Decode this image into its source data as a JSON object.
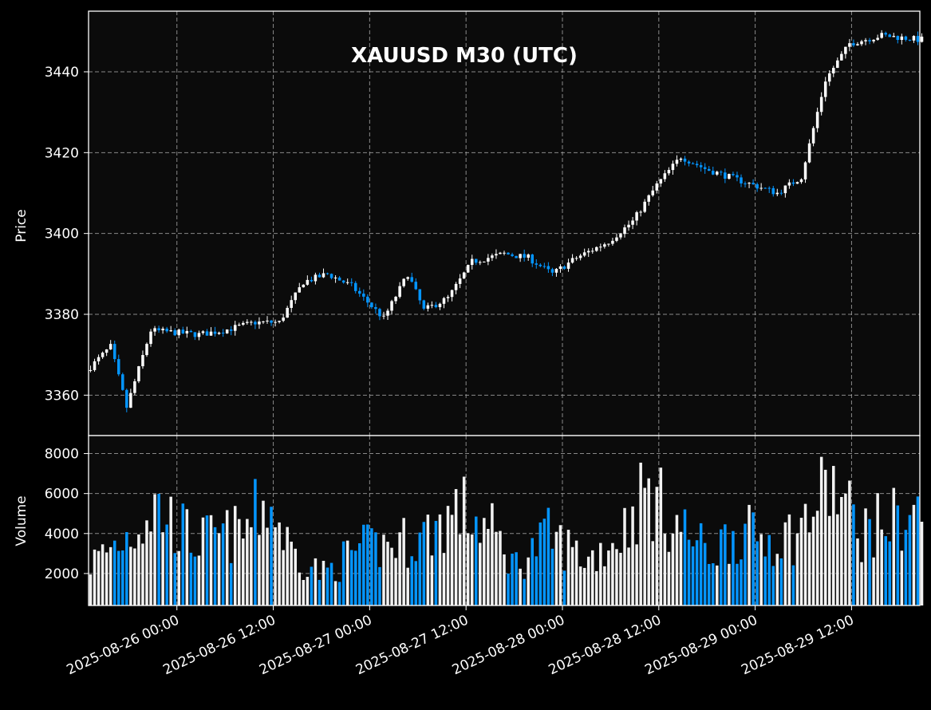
{
  "chart_data": {
    "type": "candlestick",
    "title": "XAUUSD M30 (UTC)",
    "price_panel": {
      "ylabel": "Price",
      "ylim": [
        3350,
        3455
      ],
      "yticks": [
        3360,
        3380,
        3400,
        3420,
        3440
      ],
      "grid": true
    },
    "volume_panel": {
      "ylabel": "Volume",
      "ylim": [
        400,
        8900
      ],
      "yticks": [
        2000,
        4000,
        6000,
        8000
      ],
      "yticklabels": [
        "2000",
        "4000",
        "6000",
        "8000"
      ],
      "grid": true
    },
    "xaxis": {
      "type": "datetime",
      "xlim": [
        "2025-08-25T13:00",
        "2025-08-29T20:30"
      ],
      "ticks": [
        "2025-08-26T00:00",
        "2025-08-26T12:00",
        "2025-08-27T00:00",
        "2025-08-27T12:00",
        "2025-08-28T00:00",
        "2025-08-28T12:00",
        "2025-08-29T00:00",
        "2025-08-29T12:00"
      ],
      "ticklabels": [
        "2025-08-26 00:00",
        "2025-08-26 12:00",
        "2025-08-27 00:00",
        "2025-08-27 12:00",
        "2025-08-28 00:00",
        "2025-08-28 12:00",
        "2025-08-29 00:00",
        "2025-08-29 12:00"
      ]
    },
    "colors": {
      "up": "#ffffff",
      "down": "#0495ff",
      "panel_bg": "#0b0b0b",
      "figure_bg": "#000000",
      "grid": "#a0a0a0",
      "text": "#ffffff"
    },
    "price_path": [
      {
        "t": "2025-08-25T13:00",
        "p": 3366
      },
      {
        "t": "2025-08-25T16:00",
        "p": 3372
      },
      {
        "t": "2025-08-25T18:00",
        "p": 3357
      },
      {
        "t": "2025-08-25T21:00",
        "p": 3376
      },
      {
        "t": "2025-08-26T03:00",
        "p": 3375
      },
      {
        "t": "2025-08-26T06:00",
        "p": 3376
      },
      {
        "t": "2025-08-26T10:00",
        "p": 3378
      },
      {
        "t": "2025-08-26T13:00",
        "p": 3378
      },
      {
        "t": "2025-08-26T16:00",
        "p": 3388
      },
      {
        "t": "2025-08-26T19:00",
        "p": 3390
      },
      {
        "t": "2025-08-26T22:00",
        "p": 3387
      },
      {
        "t": "2025-08-27T02:00",
        "p": 3379
      },
      {
        "t": "2025-08-27T05:00",
        "p": 3390
      },
      {
        "t": "2025-08-27T07:00",
        "p": 3381
      },
      {
        "t": "2025-08-27T10:00",
        "p": 3384
      },
      {
        "t": "2025-08-27T13:00",
        "p": 3393
      },
      {
        "t": "2025-08-27T17:00",
        "p": 3395
      },
      {
        "t": "2025-08-27T20:00",
        "p": 3394
      },
      {
        "t": "2025-08-27T23:00",
        "p": 3390
      },
      {
        "t": "2025-08-28T02:00",
        "p": 3394
      },
      {
        "t": "2025-08-28T06:00",
        "p": 3398
      },
      {
        "t": "2025-08-28T09:00",
        "p": 3403
      },
      {
        "t": "2025-08-28T12:00",
        "p": 3412
      },
      {
        "t": "2025-08-28T15:00",
        "p": 3419
      },
      {
        "t": "2025-08-28T18:00",
        "p": 3416
      },
      {
        "t": "2025-08-28T21:00",
        "p": 3414
      },
      {
        "t": "2025-08-29T00:00",
        "p": 3412
      },
      {
        "t": "2025-08-29T03:00",
        "p": 3410
      },
      {
        "t": "2025-08-29T06:00",
        "p": 3414
      },
      {
        "t": "2025-08-29T09:00",
        "p": 3438
      },
      {
        "t": "2025-08-29T12:00",
        "p": 3447
      },
      {
        "t": "2025-08-29T16:00",
        "p": 3449
      },
      {
        "t": "2025-08-29T20:30",
        "p": 3448
      }
    ],
    "volume_path": [
      {
        "t": "2025-08-25T13:00",
        "v": 2800
      },
      {
        "t": "2025-08-25T18:00",
        "v": 4500
      },
      {
        "t": "2025-08-25T21:00",
        "v": 6000
      },
      {
        "t": "2025-08-26T02:00",
        "v": 4000
      },
      {
        "t": "2025-08-26T08:00",
        "v": 4500
      },
      {
        "t": "2025-08-26T11:00",
        "v": 6300
      },
      {
        "t": "2025-08-26T14:00",
        "v": 3500
      },
      {
        "t": "2025-08-26T18:00",
        "v": 2200
      },
      {
        "t": "2025-08-26T22:00",
        "v": 3500
      },
      {
        "t": "2025-08-27T02:00",
        "v": 3800
      },
      {
        "t": "2025-08-27T06:00",
        "v": 4200
      },
      {
        "t": "2025-08-27T11:00",
        "v": 5800
      },
      {
        "t": "2025-08-27T15:00",
        "v": 4500
      },
      {
        "t": "2025-08-27T18:00",
        "v": 2700
      },
      {
        "t": "2025-08-27T22:00",
        "v": 4300
      },
      {
        "t": "2025-08-28T03:00",
        "v": 3000
      },
      {
        "t": "2025-08-28T07:00",
        "v": 4400
      },
      {
        "t": "2025-08-28T10:00",
        "v": 6800
      },
      {
        "t": "2025-08-28T14:00",
        "v": 5000
      },
      {
        "t": "2025-08-28T18:00",
        "v": 3300
      },
      {
        "t": "2025-08-28T21:00",
        "v": 4500
      },
      {
        "t": "2025-08-29T01:00",
        "v": 4200
      },
      {
        "t": "2025-08-29T05:00",
        "v": 4400
      },
      {
        "t": "2025-08-29T09:00",
        "v": 7200
      },
      {
        "t": "2025-08-29T13:00",
        "v": 4600
      },
      {
        "t": "2025-08-29T17:00",
        "v": 5200
      },
      {
        "t": "2025-08-29T20:30",
        "v": 5600
      }
    ]
  }
}
